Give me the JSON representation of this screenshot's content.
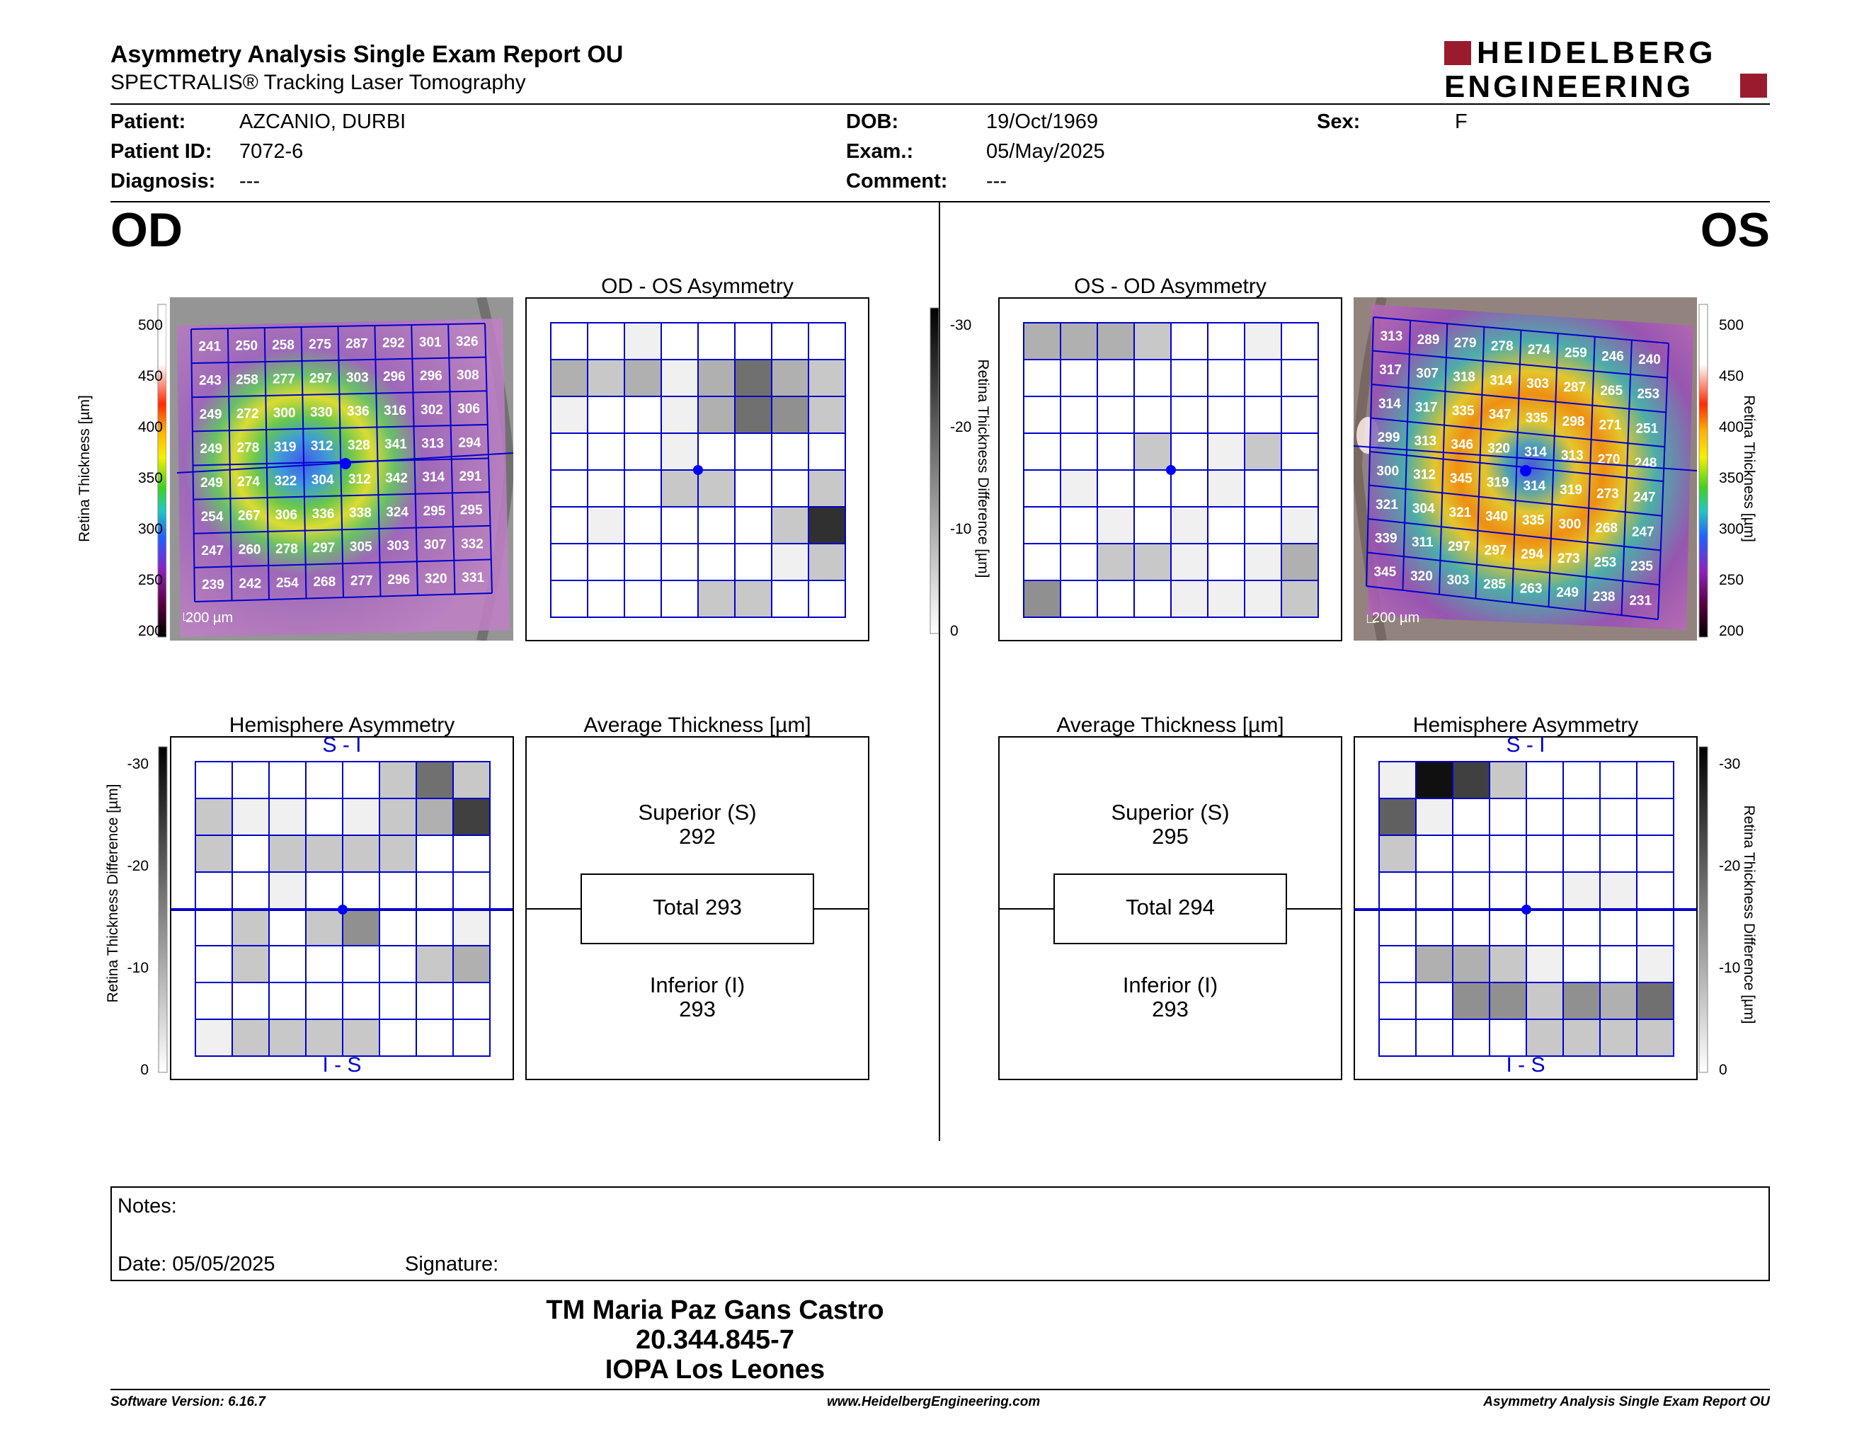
{
  "header": {
    "title": "Asymmetry Analysis Single Exam Report OU",
    "subtitle": "SPECTRALIS® Tracking Laser Tomography",
    "logo_line1": "HEIDELBERG",
    "logo_line2": "ENGINEERING"
  },
  "patient": {
    "patient_label": "Patient:",
    "patient_value": "AZCANIO, DURBI",
    "dob_label": "DOB:",
    "dob_value": "19/Oct/1969",
    "sex_label": "Sex:",
    "sex_value": "F",
    "id_label": "Patient ID:",
    "id_value": "7072-6",
    "exam_label": "Exam.:",
    "exam_value": "05/May/2025",
    "diagnosis_label": "Diagnosis:",
    "diagnosis_value": "---",
    "comment_label": "Comment:",
    "comment_value": "---"
  },
  "od": {
    "eye_label": "OD",
    "asym_title": "OD - OS Asymmetry",
    "hemi_title": "Hemisphere Asymmetry",
    "avg_title": "Average Thickness [µm]",
    "superior_label": "Superior (S)",
    "superior_value": "292",
    "total_text": "Total 293",
    "inferior_label": "Inferior (I)",
    "inferior_value": "293",
    "hemi_top": "S - I",
    "hemi_bottom": "I - S",
    "scale_text": "200 µm",
    "thickness_grid": [
      [
        241,
        250,
        258,
        275,
        287,
        292,
        301,
        326
      ],
      [
        243,
        258,
        277,
        297,
        303,
        296,
        296,
        308
      ],
      [
        249,
        272,
        300,
        330,
        336,
        316,
        302,
        306
      ],
      [
        249,
        278,
        319,
        312,
        328,
        341,
        313,
        294
      ],
      [
        249,
        274,
        322,
        304,
        312,
        342,
        314,
        291
      ],
      [
        254,
        267,
        306,
        336,
        338,
        324,
        295,
        295
      ],
      [
        247,
        260,
        278,
        297,
        305,
        303,
        307,
        332
      ],
      [
        239,
        242,
        254,
        268,
        277,
        296,
        320,
        331
      ]
    ],
    "asym_grid": [
      [
        0,
        0,
        1,
        0,
        0,
        0,
        0,
        0
      ],
      [
        3,
        2,
        3,
        1,
        3,
        5,
        3,
        2
      ],
      [
        1,
        0,
        0,
        1,
        3,
        5,
        4,
        2
      ],
      [
        0,
        0,
        0,
        1,
        0,
        0,
        0,
        0
      ],
      [
        0,
        0,
        0,
        2,
        2,
        0,
        0,
        2
      ],
      [
        0,
        1,
        0,
        0,
        0,
        0,
        2,
        8
      ],
      [
        0,
        0,
        0,
        0,
        0,
        0,
        1,
        2
      ],
      [
        0,
        0,
        0,
        0,
        2,
        2,
        0,
        0
      ]
    ],
    "hemi_grid": [
      [
        0,
        0,
        0,
        0,
        0,
        2,
        5,
        2
      ],
      [
        2,
        1,
        1,
        0,
        1,
        2,
        3,
        7
      ],
      [
        2,
        0,
        2,
        2,
        2,
        2,
        0,
        0
      ],
      [
        0,
        0,
        1,
        0,
        0,
        0,
        0,
        0
      ],
      [
        0,
        2,
        0,
        2,
        4,
        0,
        0,
        1
      ],
      [
        0,
        2,
        0,
        0,
        0,
        0,
        2,
        3
      ],
      [
        0,
        0,
        0,
        0,
        0,
        0,
        0,
        0
      ],
      [
        1,
        2,
        2,
        2,
        2,
        0,
        0,
        0
      ]
    ]
  },
  "os": {
    "eye_label": "OS",
    "asym_title": "OS - OD Asymmetry",
    "hemi_title": "Hemisphere Asymmetry",
    "avg_title": "Average Thickness [µm]",
    "superior_label": "Superior (S)",
    "superior_value": "295",
    "total_text": "Total 294",
    "inferior_label": "Inferior (I)",
    "inferior_value": "293",
    "hemi_top": "S - I",
    "hemi_bottom": "I - S",
    "scale_text": "200 µm",
    "thickness_grid": [
      [
        313,
        289,
        279,
        278,
        274,
        259,
        246,
        240
      ],
      [
        317,
        307,
        318,
        314,
        303,
        287,
        265,
        253
      ],
      [
        314,
        317,
        335,
        347,
        335,
        298,
        271,
        251
      ],
      [
        299,
        313,
        346,
        320,
        314,
        313,
        270,
        248
      ],
      [
        300,
        312,
        345,
        319,
        314,
        319,
        273,
        247
      ],
      [
        321,
        304,
        321,
        340,
        335,
        300,
        268,
        247
      ],
      [
        339,
        311,
        297,
        297,
        294,
        273,
        253,
        235
      ],
      [
        345,
        320,
        303,
        285,
        263,
        249,
        238,
        231
      ]
    ],
    "asym_grid": [
      [
        3,
        3,
        3,
        2,
        0,
        0,
        1,
        0
      ],
      [
        0,
        0,
        0,
        0,
        0,
        0,
        0,
        0
      ],
      [
        0,
        0,
        0,
        0,
        0,
        0,
        0,
        0
      ],
      [
        0,
        0,
        0,
        2,
        0,
        1,
        2,
        0
      ],
      [
        0,
        1,
        0,
        0,
        0,
        1,
        0,
        0
      ],
      [
        0,
        0,
        1,
        0,
        1,
        0,
        0,
        1
      ],
      [
        0,
        0,
        2,
        2,
        1,
        0,
        1,
        3
      ],
      [
        4,
        0,
        0,
        0,
        1,
        1,
        1,
        2
      ]
    ],
    "hemi_grid": [
      [
        1,
        9,
        7,
        2,
        0,
        0,
        0,
        0
      ],
      [
        6,
        1,
        0,
        0,
        0,
        0,
        0,
        0
      ],
      [
        2,
        0,
        0,
        0,
        0,
        0,
        0,
        0
      ],
      [
        0,
        0,
        0,
        0,
        0,
        1,
        1,
        0
      ],
      [
        0,
        0,
        0,
        0,
        0,
        0,
        0,
        0
      ],
      [
        0,
        3,
        3,
        2,
        1,
        0,
        0,
        1
      ],
      [
        0,
        0,
        4,
        4,
        2,
        4,
        3,
        5
      ],
      [
        0,
        0,
        0,
        0,
        2,
        2,
        2,
        2
      ]
    ]
  },
  "scales": {
    "thickness_label": "Retina Thickness [µm]",
    "thickness_ticks": [
      "500",
      "450",
      "400",
      "350",
      "300",
      "250",
      "200"
    ],
    "diff_label": "Retina Thickness Difference [µm]",
    "diff_ticks": [
      "-30",
      "-20",
      "-10",
      "0"
    ]
  },
  "notes": {
    "notes_label": "Notes:",
    "date_label": "Date: 05/05/2025",
    "signature_label": "Signature:"
  },
  "signatory": {
    "name": "TM Maria Paz Gans Castro",
    "id": "20.344.845-7",
    "org": "IOPA Los Leones"
  },
  "footer": {
    "software": "Software Version: 6.16.7",
    "website": "www.HeidelbergEngineering.com",
    "report": "Asymmetry Analysis Single Exam Report OU"
  },
  "colors": {
    "grid_blue": "#0000cc",
    "logo_red": "#9b1b2e"
  }
}
